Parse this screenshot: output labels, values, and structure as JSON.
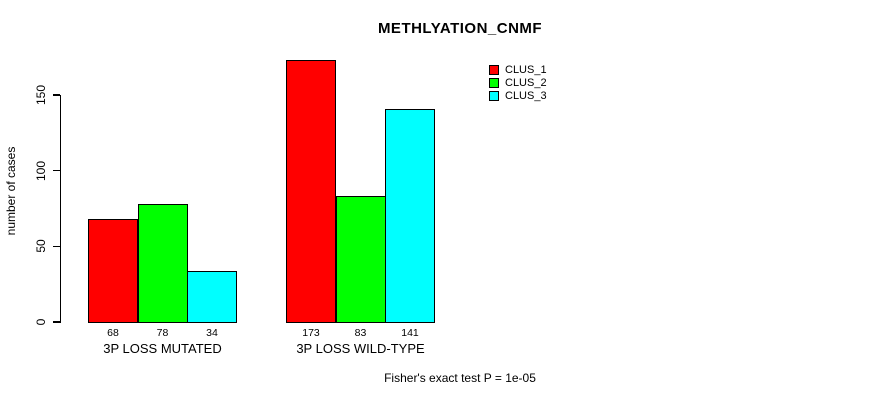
{
  "title": "METHLYATION_CNMF",
  "y_axis": {
    "label": "number of cases",
    "ticks": [
      0,
      50,
      100,
      150
    ]
  },
  "legend": {
    "items": [
      {
        "label": "CLUS_1",
        "color": "#ff0000"
      },
      {
        "label": "CLUS_2",
        "color": "#00ff00"
      },
      {
        "label": "CLUS_3",
        "color": "#00ffff"
      }
    ]
  },
  "footer": {
    "stats_label": "Fisher's exact test P = 1e-05"
  },
  "chart_data": {
    "type": "bar",
    "title": "METHLYATION_CNMF",
    "categories": [
      "3P LOSS MUTATED",
      "3P LOSS WILD-TYPE"
    ],
    "series": [
      {
        "name": "CLUS_1",
        "color": "#ff0000",
        "values": [
          68,
          173
        ]
      },
      {
        "name": "CLUS_2",
        "color": "#00ff00",
        "values": [
          78,
          83
        ]
      },
      {
        "name": "CLUS_3",
        "color": "#00ffff",
        "values": [
          34,
          141
        ]
      }
    ],
    "xlabel": "",
    "ylabel": "number of cases",
    "ylim": [
      0,
      150
    ],
    "y_ticks": [
      0,
      50,
      100,
      150
    ],
    "bar_value_labels": [
      [
        68,
        78,
        34
      ],
      [
        173,
        83,
        141
      ]
    ],
    "grid": false,
    "legend_position": "top-right",
    "annotation": "Fisher's exact test P = 1e-05"
  }
}
